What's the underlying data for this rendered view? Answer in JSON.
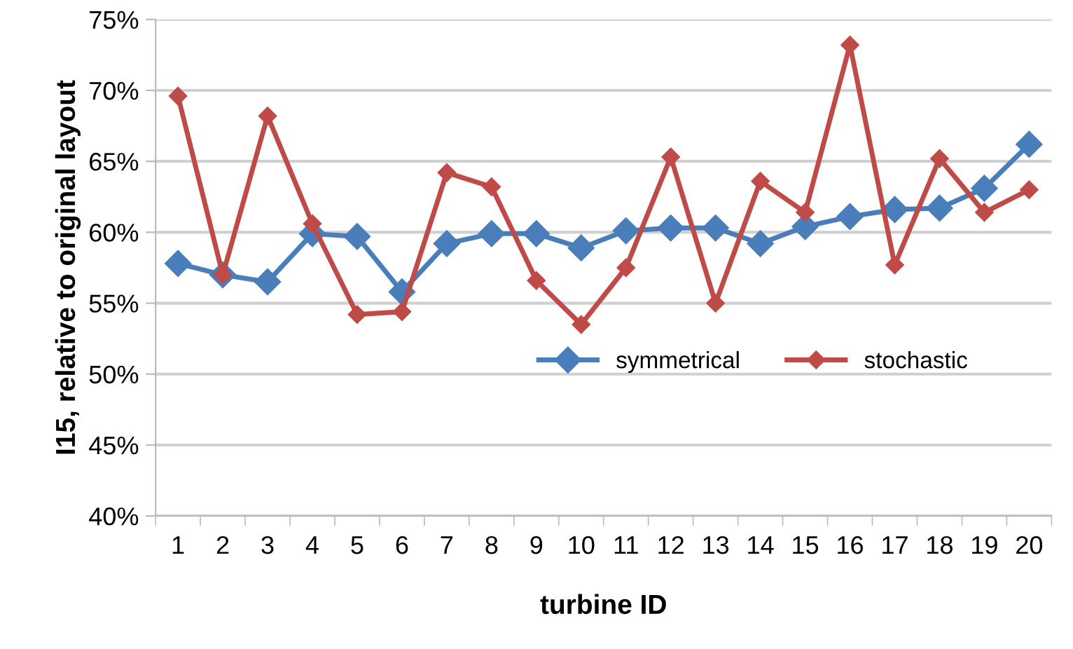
{
  "chart_data": {
    "type": "line",
    "xlabel": "turbine ID",
    "ylabel": "I15, relative to original layout",
    "categories": [
      "1",
      "2",
      "3",
      "4",
      "5",
      "6",
      "7",
      "8",
      "9",
      "10",
      "11",
      "12",
      "13",
      "14",
      "15",
      "16",
      "17",
      "18",
      "19",
      "20"
    ],
    "series": [
      {
        "name": "symmetrical",
        "color": "#4a7ebb",
        "values": [
          57.8,
          57.0,
          56.5,
          59.9,
          59.7,
          55.8,
          59.2,
          59.9,
          59.9,
          58.9,
          60.1,
          60.3,
          60.3,
          59.2,
          60.4,
          61.1,
          61.6,
          61.7,
          63.1,
          66.2
        ]
      },
      {
        "name": "stochastic",
        "color": "#be4b48",
        "values": [
          69.6,
          57.0,
          68.2,
          60.6,
          54.2,
          54.4,
          64.2,
          63.2,
          56.6,
          53.5,
          57.5,
          65.3,
          55.0,
          63.6,
          61.4,
          73.2,
          57.7,
          65.2,
          61.4,
          63.0
        ]
      }
    ],
    "ylim": [
      40,
      75
    ],
    "yticks": [
      {
        "value": 40,
        "label": "40%"
      },
      {
        "value": 45,
        "label": "45%"
      },
      {
        "value": 50,
        "label": "50%"
      },
      {
        "value": 55,
        "label": "55%"
      },
      {
        "value": 60,
        "label": "60%"
      },
      {
        "value": 65,
        "label": "65%"
      },
      {
        "value": 70,
        "label": "70%"
      },
      {
        "value": 75,
        "label": "75%"
      }
    ],
    "grid": "y",
    "legend": "right",
    "marker": "diamond",
    "line_style": "solid"
  }
}
